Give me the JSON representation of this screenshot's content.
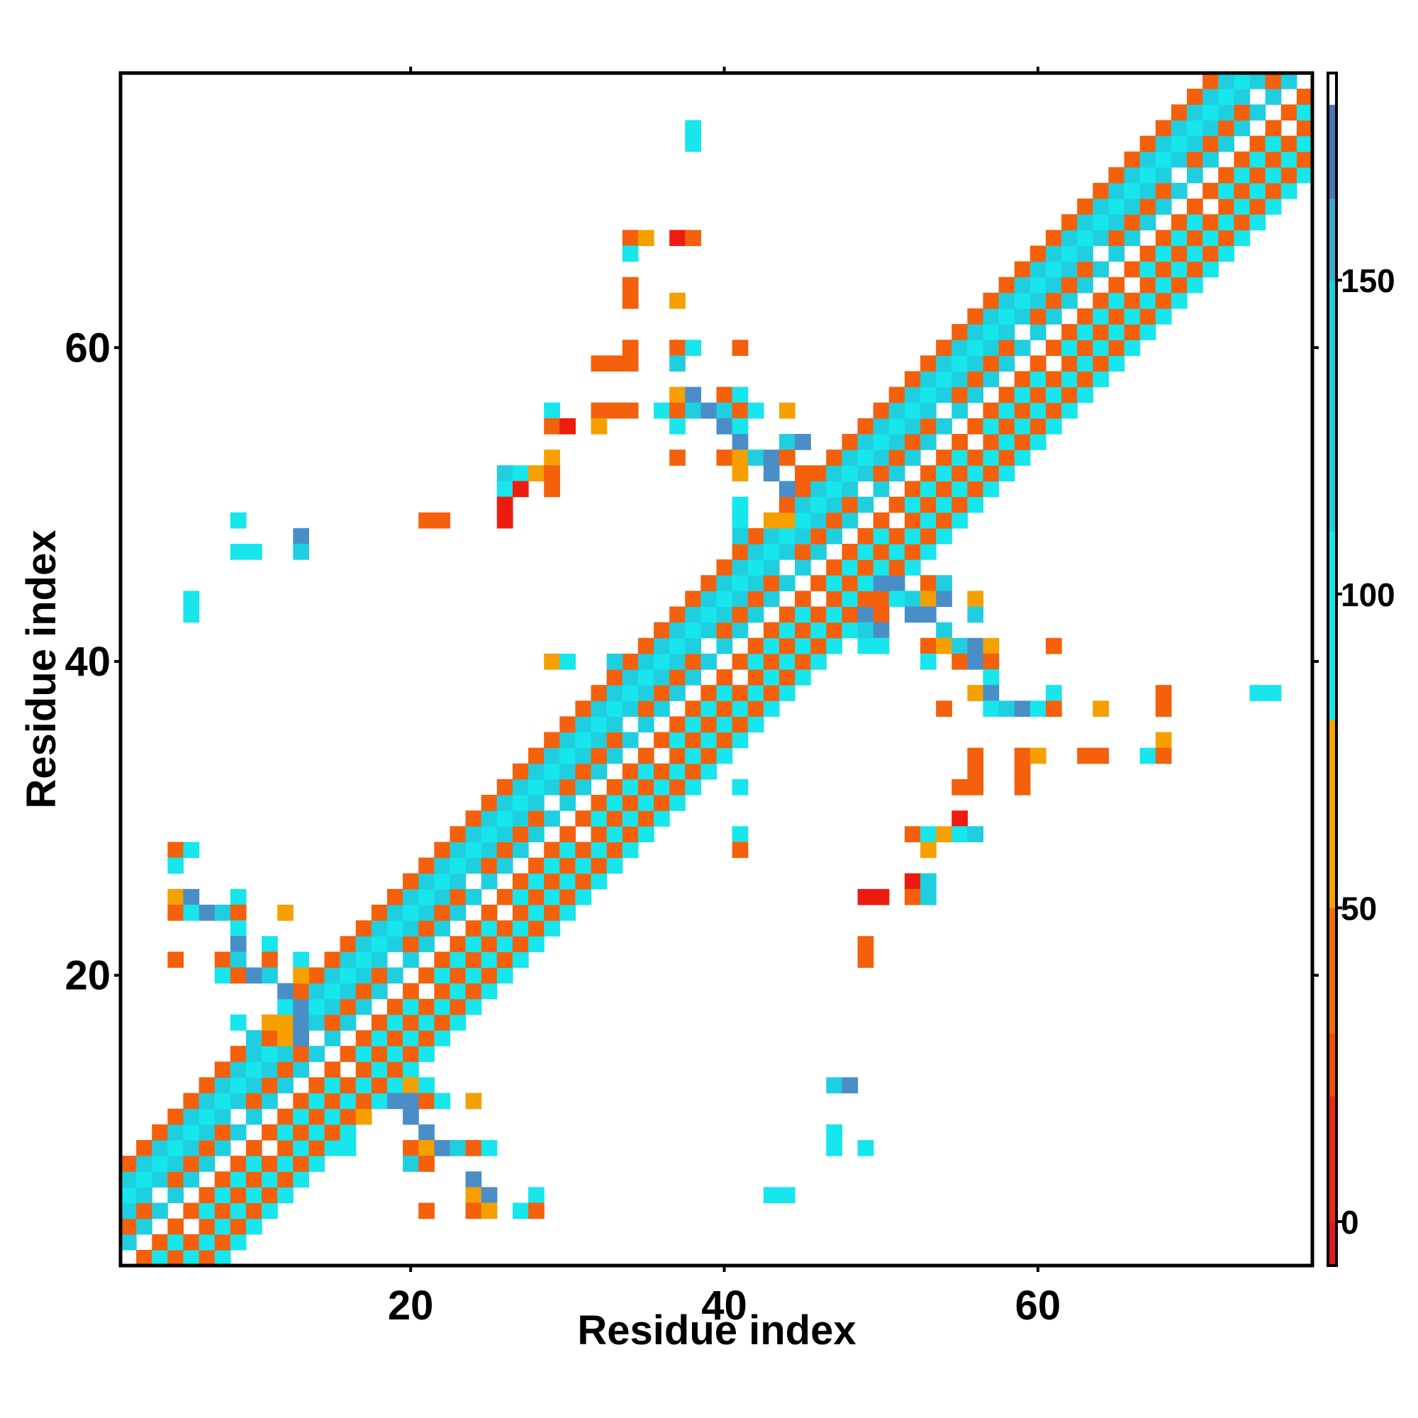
{
  "chart_data": {
    "type": "heatmap",
    "xlabel": "Residue index",
    "ylabel": "Residue index",
    "xlim": [
      1.5,
      77.5
    ],
    "ylim": [
      1.5,
      77.5
    ],
    "x_ticks": [
      20,
      40,
      60
    ],
    "y_ticks": [
      20,
      40,
      60
    ],
    "colorbar": {
      "range": [
        -7,
        183
      ],
      "ticks": [
        0,
        50,
        100,
        150
      ],
      "segments": [
        {
          "from": -7,
          "to": 0,
          "color": "#e31a1c"
        },
        {
          "from": 0,
          "to": 20,
          "color": "#ee2a10"
        },
        {
          "from": 20,
          "to": 30,
          "color": "#f24d0a"
        },
        {
          "from": 30,
          "to": 50,
          "color": "#f46e0c"
        },
        {
          "from": 50,
          "to": 80,
          "color": "#f6a400"
        },
        {
          "from": 80,
          "to": 110,
          "color": "#17e6ec"
        },
        {
          "from": 110,
          "to": 150,
          "color": "#1fcfe0"
        },
        {
          "from": 150,
          "to": 163,
          "color": "#3ba7d2"
        },
        {
          "from": 163,
          "to": 178,
          "color": "#4a77b8"
        },
        {
          "from": 178,
          "to": 183,
          "color": "#ffffff"
        }
      ]
    },
    "palette": {
      "red": "#ee1c10",
      "darkorange": "#f4600c",
      "orange": "#f6a000",
      "cyan": "#17e6ec",
      "lightblue": "#1fcfe0",
      "steelblue": "#4a8ec8"
    },
    "cell_value_by_color": {
      "red": 5,
      "darkorange": 40,
      "orange": 65,
      "cyan": 95,
      "lightblue": 130,
      "steelblue": 160
    },
    "diagonal_band": {
      "first_residue": 2,
      "last_residue": 77,
      "half_width": 6,
      "value_pattern": [
        "cyan",
        "darkorange",
        "lightblue",
        "red",
        "darkorange",
        "cyan",
        "lightblue",
        "darkorange"
      ]
    },
    "cells": [
      [
        38,
        74,
        "cyan"
      ],
      [
        38,
        73,
        "cyan"
      ],
      [
        34,
        67,
        "darkorange"
      ],
      [
        35,
        67,
        "orange"
      ],
      [
        37,
        67,
        "red"
      ],
      [
        38,
        67,
        "darkorange"
      ],
      [
        34,
        66,
        "cyan"
      ],
      [
        34,
        64,
        "darkorange"
      ],
      [
        34,
        63,
        "darkorange"
      ],
      [
        37,
        63,
        "orange"
      ],
      [
        34,
        60,
        "darkorange"
      ],
      [
        37,
        60,
        "darkorange"
      ],
      [
        38,
        60,
        "cyan"
      ],
      [
        41,
        60,
        "darkorange"
      ],
      [
        32,
        59,
        "darkorange"
      ],
      [
        33,
        59,
        "darkorange"
      ],
      [
        34,
        59,
        "darkorange"
      ],
      [
        37,
        59,
        "lightblue"
      ],
      [
        37,
        57,
        "orange"
      ],
      [
        38,
        57,
        "steelblue"
      ],
      [
        40,
        57,
        "darkorange"
      ],
      [
        41,
        57,
        "cyan"
      ],
      [
        29,
        56,
        "cyan"
      ],
      [
        32,
        56,
        "darkorange"
      ],
      [
        33,
        56,
        "darkorange"
      ],
      [
        34,
        56,
        "darkorange"
      ],
      [
        36,
        56,
        "cyan"
      ],
      [
        37,
        56,
        "darkorange"
      ],
      [
        38,
        56,
        "lightblue"
      ],
      [
        39,
        56,
        "steelblue"
      ],
      [
        40,
        56,
        "lightblue"
      ],
      [
        41,
        56,
        "darkorange"
      ],
      [
        42,
        56,
        "cyan"
      ],
      [
        44,
        56,
        "orange"
      ],
      [
        29,
        55,
        "darkorange"
      ],
      [
        30,
        55,
        "red"
      ],
      [
        32,
        55,
        "orange"
      ],
      [
        37,
        55,
        "cyan"
      ],
      [
        40,
        55,
        "steelblue"
      ],
      [
        41,
        55,
        "cyan"
      ],
      [
        41,
        54,
        "steelblue"
      ],
      [
        44,
        54,
        "lightblue"
      ],
      [
        45,
        54,
        "steelblue"
      ],
      [
        29,
        53,
        "orange"
      ],
      [
        37,
        53,
        "darkorange"
      ],
      [
        40,
        53,
        "darkorange"
      ],
      [
        41,
        53,
        "orange"
      ],
      [
        42,
        53,
        "lightblue"
      ],
      [
        43,
        53,
        "steelblue"
      ],
      [
        44,
        53,
        "darkorange"
      ],
      [
        26,
        52,
        "lightblue"
      ],
      [
        27,
        52,
        "cyan"
      ],
      [
        28,
        52,
        "orange"
      ],
      [
        29,
        52,
        "darkorange"
      ],
      [
        41,
        52,
        "orange"
      ],
      [
        43,
        52,
        "steelblue"
      ],
      [
        45,
        52,
        "darkorange"
      ],
      [
        26,
        51,
        "cyan"
      ],
      [
        27,
        51,
        "red"
      ],
      [
        29,
        51,
        "darkorange"
      ],
      [
        44,
        51,
        "steelblue"
      ],
      [
        26,
        50,
        "red"
      ],
      [
        41,
        50,
        "cyan"
      ],
      [
        9,
        49,
        "cyan"
      ],
      [
        21,
        49,
        "darkorange"
      ],
      [
        22,
        49,
        "darkorange"
      ],
      [
        26,
        49,
        "red"
      ],
      [
        41,
        49,
        "cyan"
      ],
      [
        43,
        49,
        "orange"
      ],
      [
        44,
        49,
        "orange"
      ],
      [
        13,
        48,
        "steelblue"
      ],
      [
        41,
        48,
        "lightblue"
      ],
      [
        9,
        47,
        "cyan"
      ],
      [
        10,
        47,
        "cyan"
      ],
      [
        13,
        47,
        "lightblue"
      ],
      [
        6,
        44,
        "cyan"
      ],
      [
        6,
        43,
        "cyan"
      ],
      [
        50,
        45,
        "steelblue"
      ],
      [
        51,
        45,
        "steelblue"
      ],
      [
        53,
        45,
        "darkorange"
      ],
      [
        54,
        45,
        "lightblue"
      ],
      [
        50,
        44,
        "darkorange"
      ],
      [
        51,
        44,
        "cyan"
      ],
      [
        52,
        44,
        "lightblue"
      ],
      [
        53,
        44,
        "orange"
      ],
      [
        54,
        44,
        "steelblue"
      ],
      [
        56,
        44,
        "orange"
      ],
      [
        49,
        43,
        "steelblue"
      ],
      [
        50,
        43,
        "darkorange"
      ],
      [
        52,
        43,
        "steelblue"
      ],
      [
        53,
        43,
        "steelblue"
      ],
      [
        56,
        43,
        "lightblue"
      ],
      [
        49,
        42,
        "lightblue"
      ],
      [
        50,
        42,
        "steelblue"
      ],
      [
        54,
        42,
        "lightblue"
      ],
      [
        49,
        41,
        "cyan"
      ],
      [
        50,
        41,
        "cyan"
      ],
      [
        53,
        41,
        "darkorange"
      ],
      [
        54,
        41,
        "orange"
      ],
      [
        55,
        41,
        "lightblue"
      ],
      [
        56,
        41,
        "steelblue"
      ],
      [
        57,
        41,
        "orange"
      ],
      [
        61,
        41,
        "darkorange"
      ],
      [
        29,
        40,
        "orange"
      ],
      [
        30,
        40,
        "cyan"
      ],
      [
        33,
        40,
        "lightblue"
      ],
      [
        53,
        40,
        "cyan"
      ],
      [
        55,
        40,
        "darkorange"
      ],
      [
        56,
        40,
        "steelblue"
      ],
      [
        57,
        40,
        "darkorange"
      ],
      [
        57,
        39,
        "cyan"
      ],
      [
        56,
        38,
        "orange"
      ],
      [
        57,
        38,
        "steelblue"
      ],
      [
        61,
        38,
        "cyan"
      ],
      [
        68,
        38,
        "darkorange"
      ],
      [
        74,
        38,
        "cyan"
      ],
      [
        75,
        38,
        "cyan"
      ],
      [
        54,
        37,
        "darkorange"
      ],
      [
        57,
        37,
        "cyan"
      ],
      [
        58,
        37,
        "lightblue"
      ],
      [
        59,
        37,
        "steelblue"
      ],
      [
        60,
        37,
        "cyan"
      ],
      [
        61,
        37,
        "darkorange"
      ],
      [
        64,
        37,
        "orange"
      ],
      [
        68,
        37,
        "darkorange"
      ],
      [
        68,
        35,
        "orange"
      ],
      [
        56,
        34,
        "darkorange"
      ],
      [
        59,
        34,
        "darkorange"
      ],
      [
        60,
        34,
        "orange"
      ],
      [
        63,
        34,
        "darkorange"
      ],
      [
        64,
        34,
        "darkorange"
      ],
      [
        67,
        34,
        "cyan"
      ],
      [
        68,
        34,
        "darkorange"
      ],
      [
        56,
        33,
        "darkorange"
      ],
      [
        59,
        33,
        "darkorange"
      ],
      [
        55,
        32,
        "darkorange"
      ],
      [
        56,
        32,
        "darkorange"
      ],
      [
        59,
        32,
        "darkorange"
      ],
      [
        41,
        32,
        "cyan"
      ],
      [
        55,
        30,
        "red"
      ],
      [
        52,
        29,
        "darkorange"
      ],
      [
        53,
        29,
        "cyan"
      ],
      [
        54,
        29,
        "orange"
      ],
      [
        55,
        29,
        "cyan"
      ],
      [
        56,
        29,
        "lightblue"
      ],
      [
        41,
        29,
        "cyan"
      ],
      [
        53,
        28,
        "orange"
      ],
      [
        41,
        28,
        "darkorange"
      ],
      [
        52,
        26,
        "red"
      ],
      [
        53,
        26,
        "lightblue"
      ],
      [
        49,
        25,
        "red"
      ],
      [
        50,
        25,
        "red"
      ],
      [
        52,
        25,
        "darkorange"
      ],
      [
        53,
        25,
        "lightblue"
      ],
      [
        49,
        22,
        "darkorange"
      ],
      [
        49,
        21,
        "darkorange"
      ],
      [
        5,
        28,
        "darkorange"
      ],
      [
        6,
        28,
        "cyan"
      ],
      [
        5,
        27,
        "cyan"
      ],
      [
        5,
        25,
        "orange"
      ],
      [
        6,
        25,
        "steelblue"
      ],
      [
        9,
        25,
        "cyan"
      ],
      [
        5,
        24,
        "darkorange"
      ],
      [
        6,
        24,
        "cyan"
      ],
      [
        7,
        24,
        "steelblue"
      ],
      [
        8,
        24,
        "lightblue"
      ],
      [
        9,
        24,
        "darkorange"
      ],
      [
        12,
        24,
        "orange"
      ],
      [
        9,
        23,
        "cyan"
      ],
      [
        9,
        22,
        "steelblue"
      ],
      [
        11,
        22,
        "cyan"
      ],
      [
        5,
        21,
        "darkorange"
      ],
      [
        8,
        21,
        "darkorange"
      ],
      [
        9,
        21,
        "lightblue"
      ],
      [
        11,
        21,
        "darkorange"
      ],
      [
        13,
        21,
        "cyan"
      ],
      [
        8,
        20,
        "cyan"
      ],
      [
        9,
        20,
        "darkorange"
      ],
      [
        10,
        20,
        "steelblue"
      ],
      [
        11,
        20,
        "lightblue"
      ],
      [
        13,
        20,
        "orange"
      ],
      [
        12,
        19,
        "steelblue"
      ],
      [
        12,
        18,
        "cyan"
      ],
      [
        13,
        18,
        "steelblue"
      ],
      [
        9,
        17,
        "cyan"
      ],
      [
        11,
        17,
        "orange"
      ],
      [
        12,
        17,
        "orange"
      ],
      [
        13,
        17,
        "steelblue"
      ],
      [
        10,
        16,
        "lightblue"
      ],
      [
        11,
        16,
        "darkorange"
      ],
      [
        12,
        16,
        "orange"
      ],
      [
        13,
        16,
        "steelblue"
      ],
      [
        47,
        13,
        "lightblue"
      ],
      [
        48,
        13,
        "steelblue"
      ],
      [
        20,
        13,
        "orange"
      ],
      [
        21,
        13,
        "cyan"
      ],
      [
        18,
        12,
        "cyan"
      ],
      [
        19,
        12,
        "steelblue"
      ],
      [
        20,
        12,
        "steelblue"
      ],
      [
        21,
        12,
        "darkorange"
      ],
      [
        22,
        12,
        "cyan"
      ],
      [
        24,
        12,
        "orange"
      ],
      [
        17,
        11,
        "orange"
      ],
      [
        20,
        11,
        "steelblue"
      ],
      [
        21,
        10,
        "steelblue"
      ],
      [
        47,
        10,
        "cyan"
      ],
      [
        16,
        9,
        "cyan"
      ],
      [
        20,
        9,
        "darkorange"
      ],
      [
        21,
        9,
        "orange"
      ],
      [
        22,
        9,
        "steelblue"
      ],
      [
        23,
        9,
        "lightblue"
      ],
      [
        24,
        9,
        "darkorange"
      ],
      [
        25,
        9,
        "cyan"
      ],
      [
        47,
        9,
        "cyan"
      ],
      [
        49,
        9,
        "cyan"
      ],
      [
        20,
        8,
        "lightblue"
      ],
      [
        21,
        8,
        "darkorange"
      ],
      [
        24,
        7,
        "steelblue"
      ],
      [
        24,
        6,
        "orange"
      ],
      [
        25,
        6,
        "steelblue"
      ],
      [
        28,
        6,
        "cyan"
      ],
      [
        43,
        6,
        "cyan"
      ],
      [
        44,
        6,
        "cyan"
      ],
      [
        21,
        5,
        "darkorange"
      ],
      [
        24,
        5,
        "darkorange"
      ],
      [
        25,
        5,
        "orange"
      ],
      [
        27,
        5,
        "cyan"
      ],
      [
        28,
        5,
        "darkorange"
      ]
    ]
  }
}
